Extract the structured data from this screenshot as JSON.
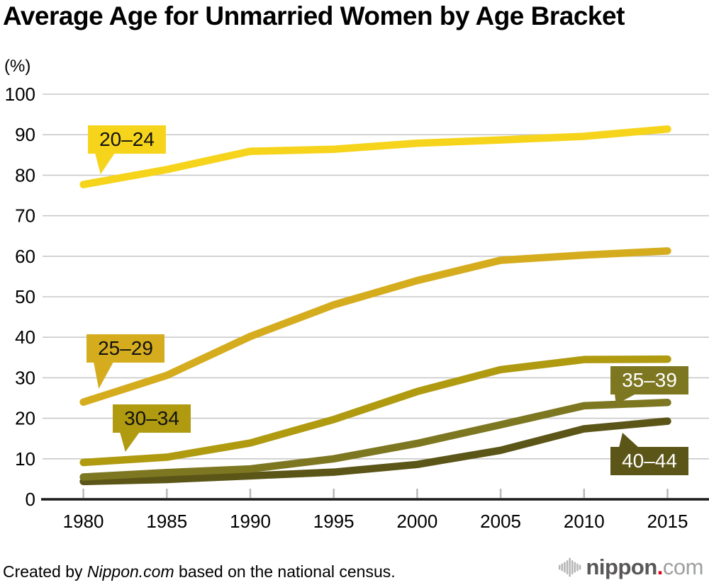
{
  "title": "Average Age for Unmarried Women by Age Bracket",
  "unit_label": "(%)",
  "chart_data": {
    "type": "line",
    "x": [
      1980,
      1985,
      1990,
      1995,
      2000,
      2005,
      2010,
      2015
    ],
    "series": [
      {
        "name": "20–24",
        "values": [
          77.7,
          81.4,
          85.9,
          86.4,
          87.9,
          88.7,
          89.6,
          91.4
        ],
        "color": "#F6D41C",
        "label_text_color": "#111111"
      },
      {
        "name": "25–29",
        "values": [
          24.0,
          30.6,
          40.2,
          48.0,
          54.0,
          59.0,
          60.3,
          61.3
        ],
        "color": "#D5AC1E",
        "label_text_color": "#111111"
      },
      {
        "name": "30–34",
        "values": [
          9.1,
          10.4,
          13.9,
          19.7,
          26.6,
          32.0,
          34.5,
          34.6
        ],
        "color": "#AF9A10",
        "label_text_color": "#111111"
      },
      {
        "name": "35–39",
        "values": [
          5.5,
          6.6,
          7.5,
          10.0,
          13.8,
          18.4,
          23.1,
          23.9
        ],
        "color": "#7D7721",
        "label_text_color": "#FFFFFF"
      },
      {
        "name": "40–44",
        "values": [
          4.4,
          4.9,
          5.8,
          6.7,
          8.6,
          12.1,
          17.4,
          19.3
        ],
        "color": "#5B5517",
        "label_text_color": "#FFFFFF"
      }
    ],
    "ylim": [
      0,
      100
    ],
    "y_ticks": [
      0,
      10,
      20,
      30,
      40,
      50,
      60,
      70,
      80,
      90,
      100
    ],
    "ylabel": "(%)",
    "xlabel": "",
    "grid": "horizontal",
    "legend_position": "inline-callouts"
  },
  "colors": {
    "gridline": "#c9c9c9",
    "axis": "#1a1a1a",
    "tick": "#b9b9b9",
    "axis_text": "#000000",
    "logo_bars": "#b4b4b5",
    "logo_dark": "#595757",
    "logo_dot": "#e60012",
    "logo_light": "#9e9f9f"
  },
  "footer": {
    "credit_prefix": "Created by ",
    "credit_source": "Nippon.com",
    "credit_suffix": " based on the national census.",
    "logo": {
      "name": "nippon",
      "dot": ".",
      "tld": "com"
    }
  }
}
